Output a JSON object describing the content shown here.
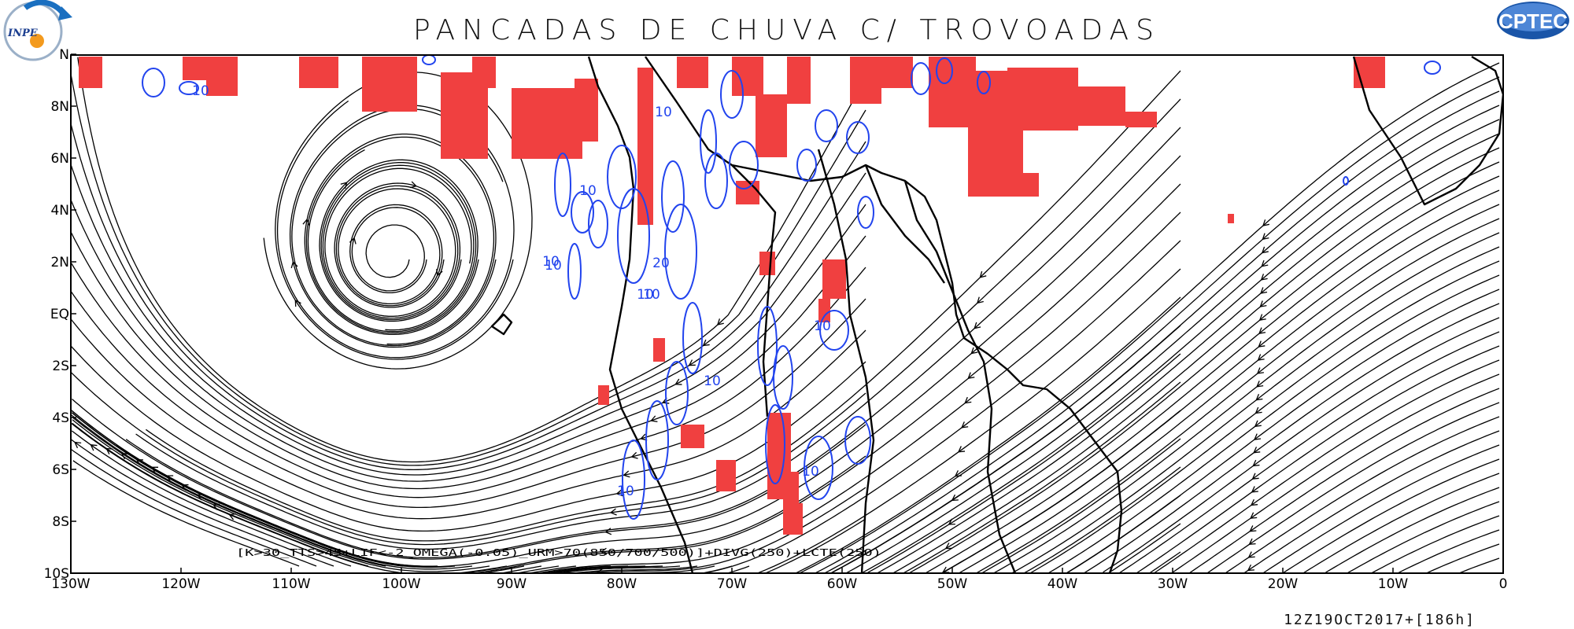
{
  "title": "PANCADAS DE CHUVA C/ TROVOADAS",
  "formula": "[K>30_TTS>45+LIF<-2_OMEGA(-0.05)_URM>70(850/700/500)]+DIVG(250)+LCTE(250)",
  "valid_time": "12Z19OCT2017+[186h]",
  "logos": {
    "left": "INPE",
    "right": "CPTEC"
  },
  "x_axis": {
    "labels": [
      "130W",
      "120W",
      "110W",
      "100W",
      "90W",
      "80W",
      "70W",
      "60W",
      "50W",
      "40W",
      "30W",
      "20W",
      "10W",
      "0"
    ]
  },
  "y_axis": {
    "labels": [
      "10S",
      "8S",
      "6S",
      "4S",
      "2S",
      "EQ",
      "2N",
      "4N",
      "6N",
      "8N",
      "N"
    ]
  },
  "contour_labels": [
    "10",
    "10",
    "10",
    "10",
    "10",
    "20",
    "10",
    "10",
    "10",
    "10",
    "10",
    "10"
  ],
  "colors": {
    "storm": "#f04040",
    "divergence": "#2244ee",
    "streamline": "#000000",
    "coast": "#000000"
  }
}
